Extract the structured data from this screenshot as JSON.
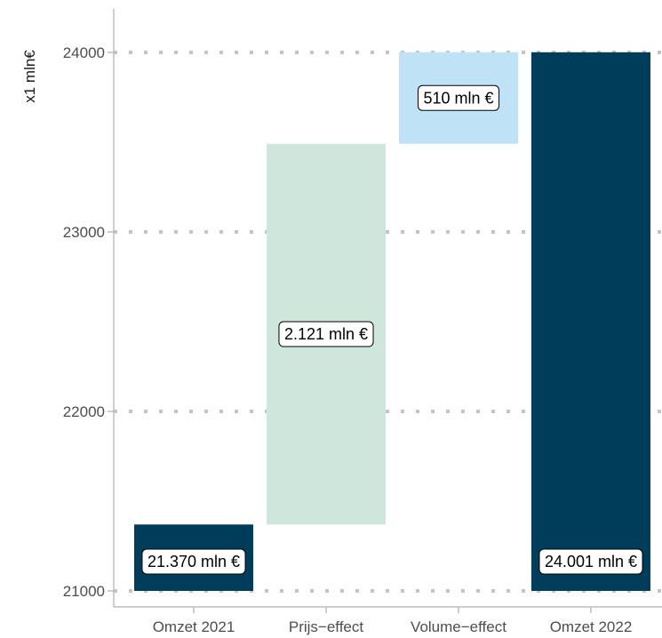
{
  "chart_data": {
    "type": "waterfall",
    "ylabel": "x1 mln€",
    "ylim": [
      20950,
      24250
    ],
    "yticks": [
      21000,
      22000,
      23000,
      24000
    ],
    "ytick_labels": [
      "21000",
      "22000",
      "23000",
      "24000"
    ],
    "grid": "horizontal dotted",
    "bars": [
      {
        "category": "Omzet 2021",
        "start": 21000,
        "end": 21370,
        "label": "21.370 mln €",
        "color": "#003d5b"
      },
      {
        "category": "Prijs−effect",
        "start": 21370,
        "end": 23491,
        "label": "2.121 mln €",
        "color": "#cfe6dd"
      },
      {
        "category": "Volume−effect",
        "start": 23491,
        "end": 24001,
        "label": "510 mln €",
        "color": "#bfe2f6"
      },
      {
        "category": "Omzet 2022",
        "start": 21000,
        "end": 24001,
        "label": "24.001 mln €",
        "color": "#003d5b"
      }
    ]
  }
}
